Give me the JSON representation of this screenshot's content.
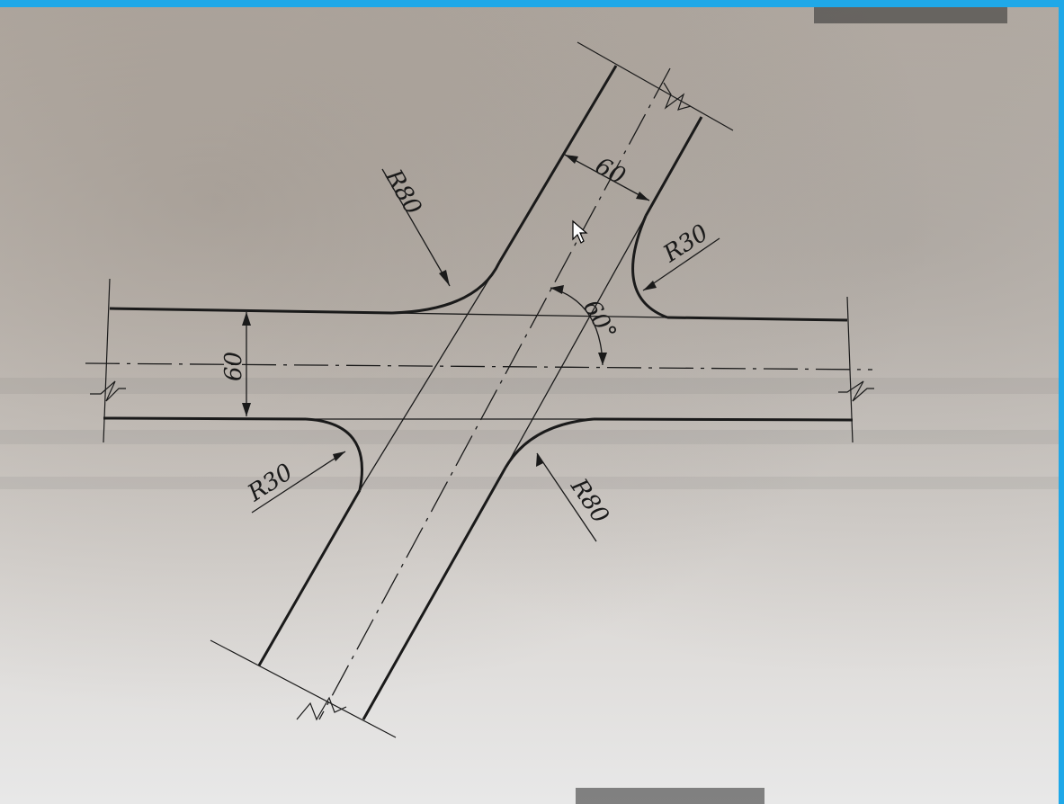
{
  "labels": {
    "radius_upper_left": "R80",
    "radius_upper_right": "R30",
    "radius_lower_left": "R30",
    "radius_lower_right": "R80",
    "width_diagonal": "60",
    "width_horizontal": "60",
    "angle": "60°"
  },
  "colors": {
    "line": "#1a1a1a",
    "frame_accent": "#1fa8e8"
  },
  "icons": {
    "cursor": "mouse-pointer-icon"
  }
}
